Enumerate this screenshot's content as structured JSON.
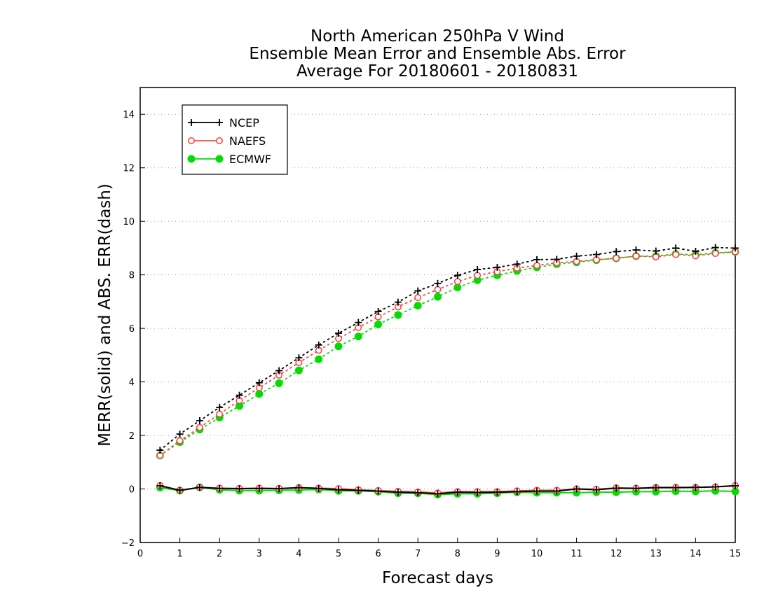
{
  "chart_data": {
    "type": "line",
    "title_lines": [
      "North American 250hPa V Wind",
      "Ensemble Mean Error and Ensemble Abs. Error",
      "Average For 20180601 - 20180831"
    ],
    "xlabel": "Forecast days",
    "ylabel": "MERR(solid) and ABS. ERR(dash)",
    "xlim": [
      0,
      15
    ],
    "ylim": [
      -2,
      15
    ],
    "xticks": [
      "0",
      "1",
      "2",
      "3",
      "4",
      "5",
      "6",
      "7",
      "8",
      "9",
      "10",
      "11",
      "12",
      "13",
      "14",
      "15"
    ],
    "yticks": [
      "−2",
      "0",
      "2",
      "4",
      "6",
      "8",
      "10",
      "12",
      "14"
    ],
    "grid": "horizontal dotted",
    "legend_placement": "top-left",
    "x": [
      0.5,
      1,
      1.5,
      2,
      2.5,
      3,
      3.5,
      4,
      4.5,
      5,
      5.5,
      6,
      6.5,
      7,
      7.5,
      8,
      8.5,
      9,
      9.5,
      10,
      10.5,
      11,
      11.5,
      12,
      12.5,
      13,
      13.5,
      14,
      14.5,
      15
    ],
    "series": [
      {
        "name": "NCEP",
        "color": "#000000",
        "marker": "plus",
        "merr": [
          0.12,
          -0.05,
          0.06,
          0.02,
          0.01,
          0.02,
          0.01,
          0.05,
          0.02,
          -0.03,
          -0.05,
          -0.08,
          -0.12,
          -0.14,
          -0.18,
          -0.12,
          -0.13,
          -0.12,
          -0.1,
          -0.08,
          -0.08,
          0.0,
          -0.03,
          0.03,
          0.02,
          0.05,
          0.05,
          0.06,
          0.08,
          0.12
        ],
        "abs_err": [
          1.45,
          2.05,
          2.55,
          3.05,
          3.5,
          3.97,
          4.42,
          4.9,
          5.38,
          5.82,
          6.22,
          6.63,
          6.98,
          7.4,
          7.68,
          7.98,
          8.2,
          8.28,
          8.4,
          8.57,
          8.58,
          8.7,
          8.76,
          8.87,
          8.93,
          8.89,
          9.0,
          8.88,
          9.02,
          9.0
        ]
      },
      {
        "name": "NAEFS",
        "color": "#ff4444",
        "marker": "open-circle",
        "merr": [
          0.13,
          -0.05,
          0.06,
          0.03,
          0.02,
          0.03,
          0.02,
          0.05,
          0.03,
          0.01,
          -0.03,
          -0.06,
          -0.09,
          -0.11,
          -0.15,
          -0.1,
          -0.1,
          -0.1,
          -0.07,
          -0.05,
          -0.05,
          0.0,
          -0.01,
          0.04,
          0.03,
          0.06,
          0.06,
          0.06,
          0.08,
          0.13
        ],
        "abs_err": [
          1.25,
          1.8,
          2.3,
          2.8,
          3.3,
          3.78,
          4.25,
          4.72,
          5.18,
          5.62,
          6.03,
          6.43,
          6.8,
          7.15,
          7.45,
          7.75,
          7.98,
          8.12,
          8.25,
          8.35,
          8.45,
          8.5,
          8.57,
          8.62,
          8.7,
          8.67,
          8.76,
          8.71,
          8.8,
          8.86
        ]
      },
      {
        "name": "ECMWF",
        "color": "#00dd00",
        "marker": "filled-circle",
        "merr": [
          0.05,
          -0.06,
          0.06,
          -0.03,
          -0.06,
          -0.06,
          -0.05,
          -0.04,
          -0.02,
          -0.07,
          -0.07,
          -0.1,
          -0.16,
          -0.16,
          -0.21,
          -0.18,
          -0.18,
          -0.16,
          -0.12,
          -0.14,
          -0.14,
          -0.14,
          -0.12,
          -0.12,
          -0.1,
          -0.1,
          -0.08,
          -0.09,
          -0.07,
          -0.09
        ],
        "abs_err": [
          1.25,
          1.75,
          2.22,
          2.67,
          3.1,
          3.55,
          3.95,
          4.43,
          4.85,
          5.33,
          5.7,
          6.15,
          6.5,
          6.85,
          7.18,
          7.53,
          7.8,
          7.98,
          8.15,
          8.28,
          8.4,
          8.47,
          8.55,
          8.62,
          8.7,
          8.7,
          8.78,
          8.75,
          8.82,
          8.86
        ]
      }
    ]
  }
}
